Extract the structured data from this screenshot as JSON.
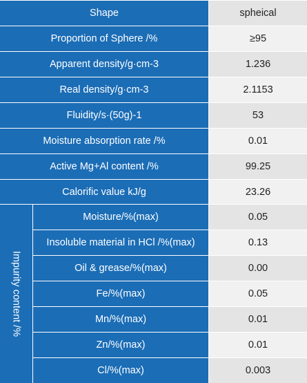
{
  "table": {
    "header": [
      "Shape",
      "spheical"
    ],
    "rows": [
      [
        "Proportion of Sphere /%",
        "≥95"
      ],
      [
        "Apparent density/g·cm-3",
        "1.236"
      ],
      [
        "Real density/g·cm-3",
        "2.1153"
      ],
      [
        "Fluidity/s·(50g)-1",
        "53"
      ],
      [
        "Moisture absorption rate /%",
        "0.01"
      ],
      [
        "Active Mg+Al content /%",
        "99.25"
      ],
      [
        "Calorific value kJ/g",
        "23.26"
      ]
    ],
    "impurity": {
      "label": "Impurity content /%",
      "rows": [
        [
          "Moisture/%(max)",
          "0.05"
        ],
        [
          "Insoluble material in HCl /%(max)",
          "0.13"
        ],
        [
          "Oil & grease/%(max)",
          "0.00"
        ],
        [
          "Fe/%(max)",
          "0.05"
        ],
        [
          "Mn/%(max)",
          "0.01"
        ],
        [
          "Zn/%(max)",
          "0.01"
        ],
        [
          "Cl/%(max)",
          "0.003"
        ]
      ]
    }
  }
}
